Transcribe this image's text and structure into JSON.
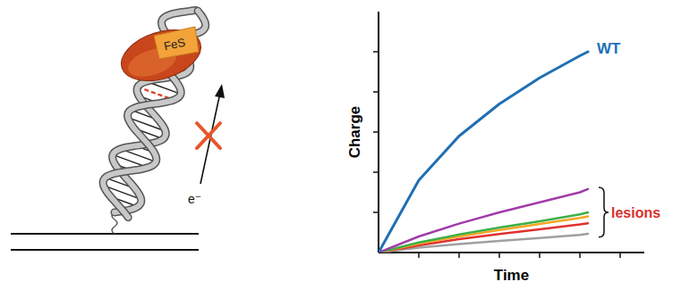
{
  "chart_data": {
    "type": "line",
    "x_label": "Time",
    "y_label": "Charge",
    "xlim": [
      0,
      6.6
    ],
    "ylim": [
      0,
      6
    ],
    "xticks": [
      1,
      2,
      3,
      4,
      5,
      6
    ],
    "yticks": [
      1,
      2,
      3,
      4,
      5
    ],
    "tick_labels": false,
    "grid": false,
    "x": [
      0,
      1,
      2,
      3,
      4,
      5,
      5.2
    ],
    "series": [
      {
        "name": "WT",
        "color": "#1f6fb4",
        "values": [
          0,
          1.8,
          2.9,
          3.7,
          4.35,
          4.9,
          5.0
        ]
      },
      {
        "color": "#a03ca8",
        "values": [
          0,
          0.4,
          0.72,
          1.0,
          1.25,
          1.5,
          1.58
        ]
      },
      {
        "color": "#3fae49",
        "values": [
          0,
          0.25,
          0.45,
          0.62,
          0.78,
          0.95,
          1.0
        ]
      },
      {
        "color": "#f5a623",
        "values": [
          0,
          0.22,
          0.4,
          0.56,
          0.71,
          0.86,
          0.9
        ]
      },
      {
        "color": "#e0312f",
        "values": [
          0,
          0.18,
          0.33,
          0.46,
          0.58,
          0.7,
          0.73
        ]
      },
      {
        "color": "#a0a0a0",
        "values": [
          0,
          0.12,
          0.21,
          0.29,
          0.36,
          0.44,
          0.47
        ]
      }
    ],
    "annotation": {
      "text": "lesions",
      "color": "#d8302c"
    }
  },
  "diagram": {
    "protein_label": "FeS",
    "electron_label": "e⁻"
  }
}
